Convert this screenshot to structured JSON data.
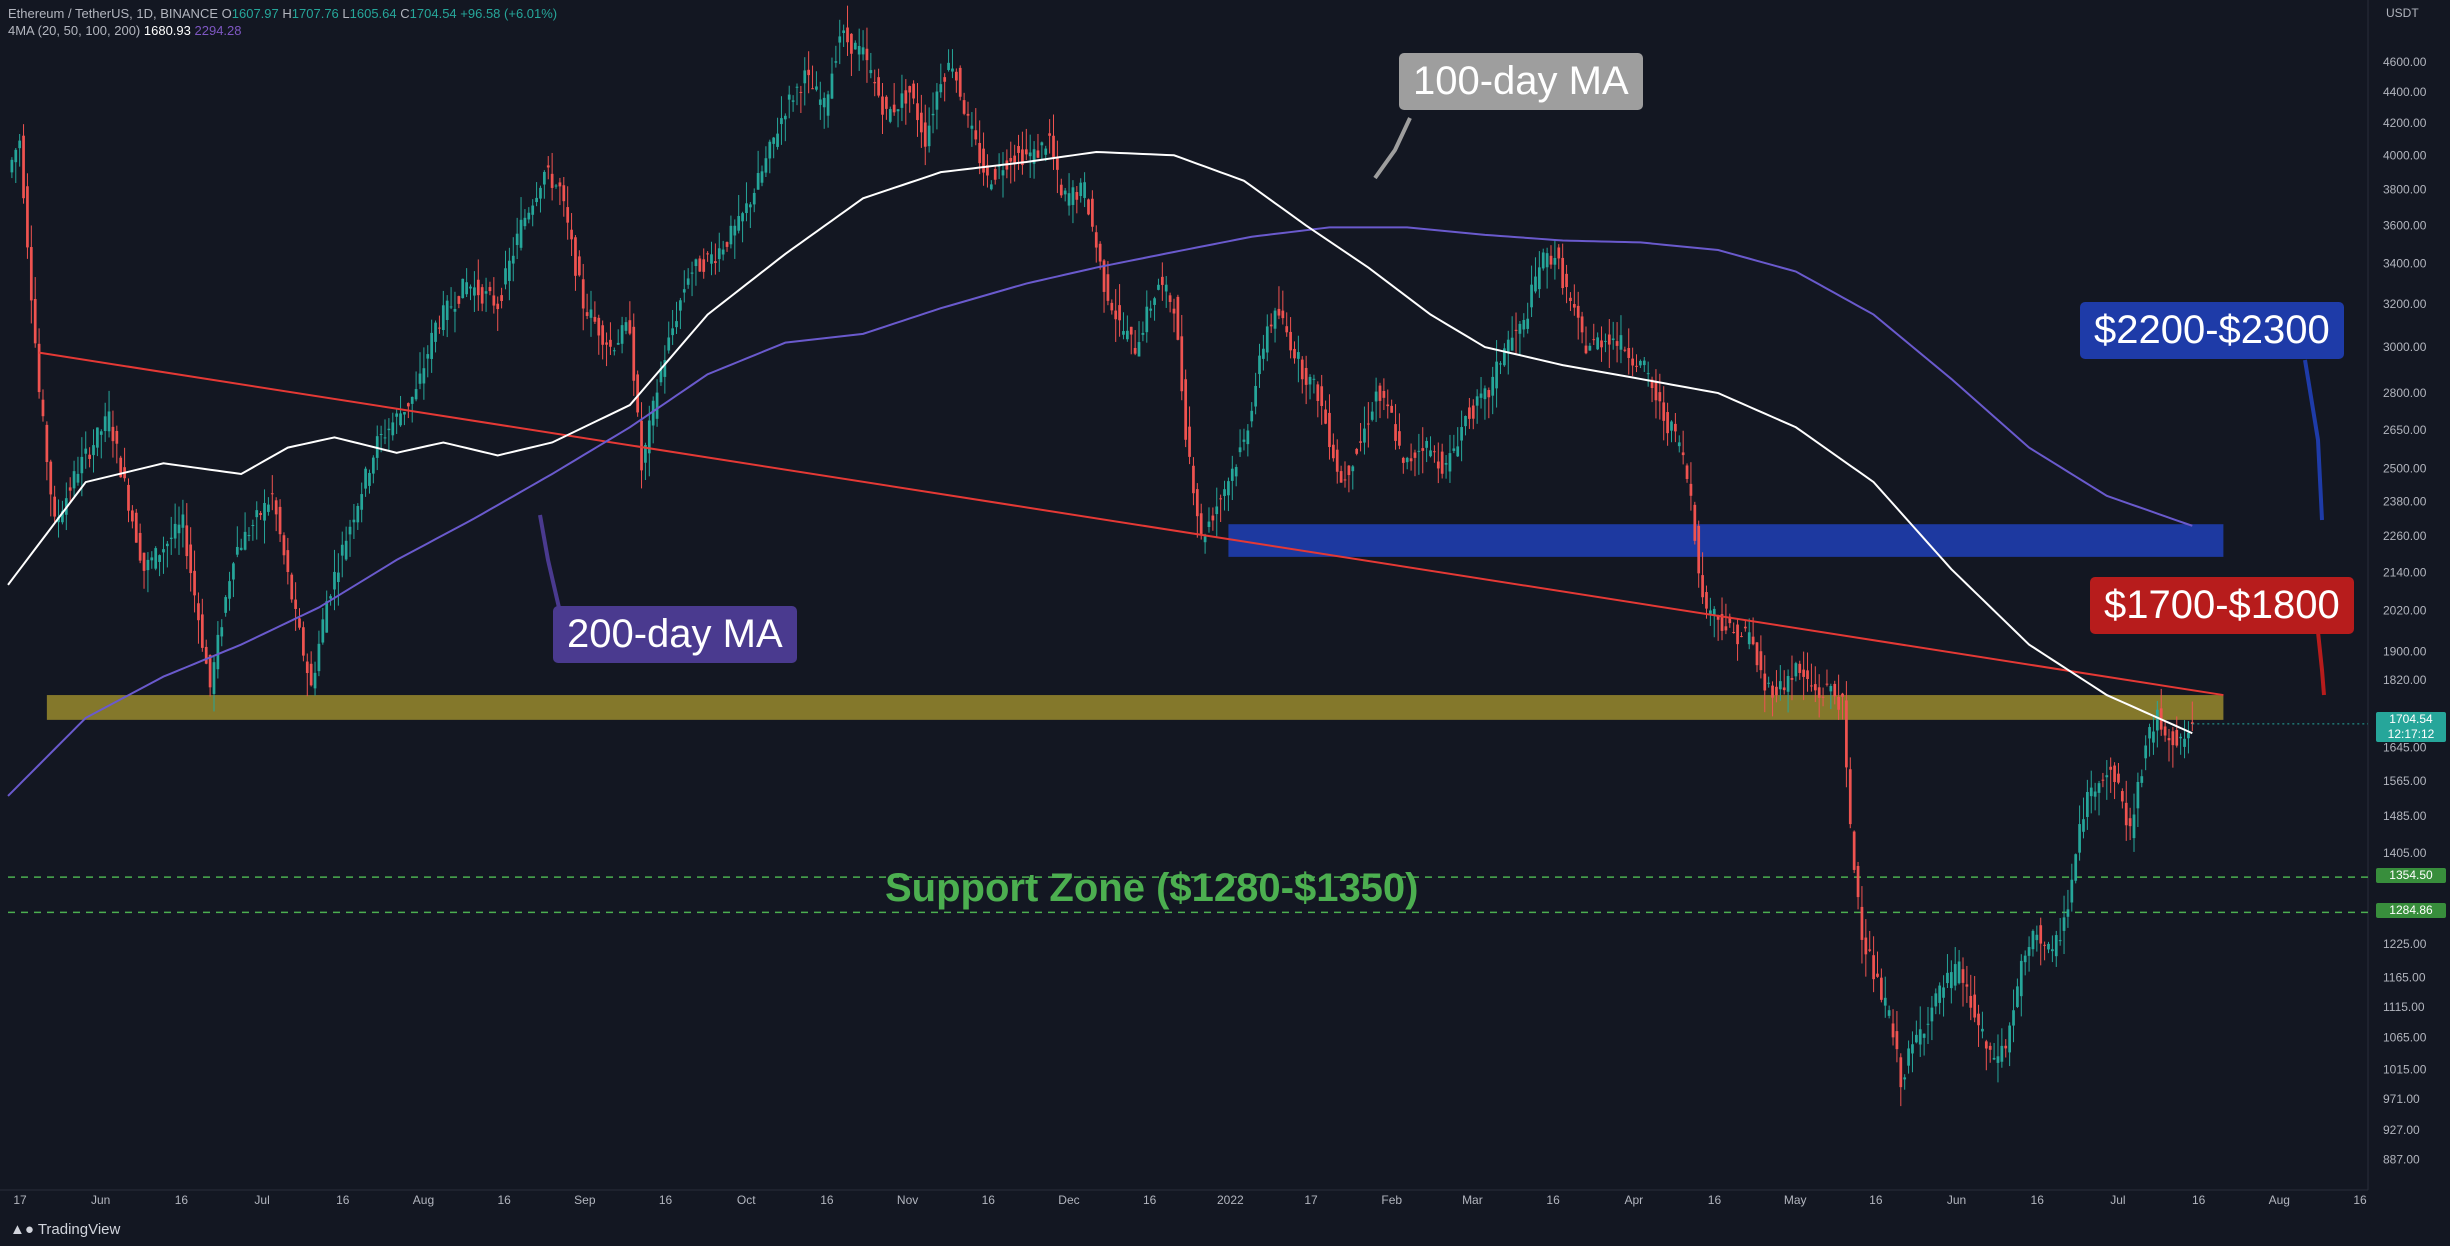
{
  "header": {
    "symbol_line": "Ethereum / TetherUS, 1D, BINANCE",
    "open_label": "O",
    "open": "1607.97",
    "high_label": "H",
    "high": "1707.76",
    "low_label": "L",
    "low": "1605.64",
    "close_label": "C",
    "close": "1704.54",
    "change": "+96.58 (+6.01%)",
    "indicator_label": "4MA (20, 50, 100, 200)",
    "ma_value_1": "1680.93",
    "ma_value_2": "2294.28"
  },
  "currency": "USDT",
  "footer": "TradingView",
  "annotations": {
    "ma100": "100-day MA",
    "ma200": "200-day MA",
    "zone_blue": "$2200-$2300",
    "zone_red": "$1700-$1800",
    "support": "Support Zone ($1280-$1350)"
  },
  "price_tags": {
    "last_price": "1704.54",
    "countdown": "12:17:12",
    "level_1": "1354.50",
    "level_2": "1284.86"
  },
  "colors": {
    "background": "#131722",
    "up": "#26a69a",
    "down": "#ef5350",
    "ma100": "#ffffff",
    "ma200": "#6a5acd",
    "trendline": "#e53935",
    "blue_zone": "#1e3ba8",
    "yellow_zone": "#8a7d2c",
    "support_lines": "#4caf50"
  },
  "chart_data": {
    "type": "candlestick",
    "y_scale": "log",
    "ylim": [
      860,
      4900
    ],
    "y_ticks": [
      887,
      927,
      971,
      1015,
      1065,
      1115,
      1165,
      1225,
      1285,
      1405,
      1485,
      1565,
      1645,
      1820,
      1900,
      2020,
      2140,
      2260,
      2380,
      2500,
      2650,
      2800,
      3000,
      3200,
      3400,
      3600,
      3800,
      4000,
      4200,
      4400,
      4600
    ],
    "x_ticks": [
      "17",
      "Jun",
      "16",
      "Jul",
      "16",
      "Aug",
      "16",
      "Sep",
      "16",
      "Oct",
      "16",
      "Nov",
      "16",
      "Dec",
      "16",
      "2022",
      "17",
      "Feb",
      "Mar",
      "16",
      "Apr",
      "16",
      "May",
      "16",
      "Jun",
      "16",
      "Jul",
      "16",
      "Aug",
      "16"
    ],
    "price_path": [
      [
        0,
        3900
      ],
      [
        3,
        4100
      ],
      [
        8,
        2800
      ],
      [
        12,
        2300
      ],
      [
        18,
        2500
      ],
      [
        26,
        2700
      ],
      [
        35,
        2150
      ],
      [
        45,
        2300
      ],
      [
        52,
        1800
      ],
      [
        58,
        2200
      ],
      [
        68,
        2400
      ],
      [
        74,
        2000
      ],
      [
        78,
        1800
      ],
      [
        82,
        2050
      ],
      [
        88,
        2300
      ],
      [
        95,
        2600
      ],
      [
        100,
        2700
      ],
      [
        105,
        2800
      ],
      [
        110,
        3100
      ],
      [
        118,
        3300
      ],
      [
        126,
        3200
      ],
      [
        132,
        3600
      ],
      [
        138,
        3900
      ],
      [
        142,
        3800
      ],
      [
        148,
        3200
      ],
      [
        155,
        3000
      ],
      [
        160,
        3100
      ],
      [
        163,
        2500
      ],
      [
        168,
        2900
      ],
      [
        175,
        3350
      ],
      [
        182,
        3450
      ],
      [
        188,
        3600
      ],
      [
        194,
        3900
      ],
      [
        200,
        4300
      ],
      [
        205,
        4500
      ],
      [
        210,
        4300
      ],
      [
        214,
        4800
      ],
      [
        220,
        4650
      ],
      [
        226,
        4250
      ],
      [
        232,
        4400
      ],
      [
        236,
        4100
      ],
      [
        240,
        4500
      ],
      [
        243,
        4600
      ],
      [
        247,
        4200
      ],
      [
        252,
        3850
      ],
      [
        258,
        4000
      ],
      [
        264,
        4000
      ],
      [
        268,
        4100
      ],
      [
        271,
        3750
      ],
      [
        277,
        3800
      ],
      [
        282,
        3300
      ],
      [
        286,
        3100
      ],
      [
        290,
        3000
      ],
      [
        296,
        3300
      ],
      [
        300,
        3200
      ],
      [
        303,
        2650
      ],
      [
        307,
        2250
      ],
      [
        312,
        2400
      ],
      [
        318,
        2600
      ],
      [
        324,
        3100
      ],
      [
        327,
        3150
      ],
      [
        333,
        2900
      ],
      [
        337,
        2800
      ],
      [
        343,
        2450
      ],
      [
        348,
        2600
      ],
      [
        352,
        2800
      ],
      [
        356,
        2700
      ],
      [
        359,
        2500
      ],
      [
        364,
        2600
      ],
      [
        370,
        2500
      ],
      [
        375,
        2700
      ],
      [
        381,
        2800
      ],
      [
        385,
        3000
      ],
      [
        390,
        3100
      ],
      [
        394,
        3400
      ],
      [
        398,
        3450
      ],
      [
        402,
        3200
      ],
      [
        406,
        3000
      ],
      [
        412,
        3050
      ],
      [
        416,
        3000
      ],
      [
        421,
        2900
      ],
      [
        426,
        2700
      ],
      [
        430,
        2600
      ],
      [
        433,
        2400
      ],
      [
        436,
        2050
      ],
      [
        440,
        2000
      ],
      [
        444,
        1950
      ],
      [
        448,
        1950
      ],
      [
        452,
        1800
      ],
      [
        456,
        1800
      ],
      [
        460,
        1850
      ],
      [
        466,
        1780
      ],
      [
        469,
        1800
      ],
      [
        472,
        1750
      ],
      [
        474,
        1450
      ],
      [
        477,
        1250
      ],
      [
        481,
        1150
      ],
      [
        484,
        1100
      ],
      [
        487,
        1000
      ],
      [
        490,
        1050
      ],
      [
        494,
        1100
      ],
      [
        498,
        1150
      ],
      [
        502,
        1180
      ],
      [
        506,
        1100
      ],
      [
        510,
        1030
      ],
      [
        514,
        1050
      ],
      [
        518,
        1180
      ],
      [
        522,
        1250
      ],
      [
        526,
        1200
      ],
      [
        530,
        1300
      ],
      [
        534,
        1500
      ],
      [
        538,
        1580
      ],
      [
        542,
        1580
      ],
      [
        546,
        1450
      ],
      [
        550,
        1650
      ],
      [
        553,
        1720
      ],
      [
        556,
        1680
      ],
      [
        559,
        1650
      ],
      [
        562,
        1704.54
      ]
    ],
    "ma100": [
      [
        0,
        2100
      ],
      [
        20,
        2450
      ],
      [
        40,
        2520
      ],
      [
        60,
        2480
      ],
      [
        72,
        2580
      ],
      [
        84,
        2620
      ],
      [
        100,
        2560
      ],
      [
        112,
        2600
      ],
      [
        126,
        2550
      ],
      [
        140,
        2600
      ],
      [
        160,
        2750
      ],
      [
        180,
        3150
      ],
      [
        200,
        3450
      ],
      [
        220,
        3750
      ],
      [
        240,
        3900
      ],
      [
        262,
        3960
      ],
      [
        280,
        4020
      ],
      [
        300,
        4000
      ],
      [
        318,
        3850
      ],
      [
        334,
        3600
      ],
      [
        350,
        3380
      ],
      [
        366,
        3150
      ],
      [
        380,
        3000
      ],
      [
        400,
        2920
      ],
      [
        420,
        2860
      ],
      [
        440,
        2800
      ],
      [
        460,
        2660
      ],
      [
        480,
        2450
      ],
      [
        500,
        2150
      ],
      [
        520,
        1920
      ],
      [
        540,
        1780
      ],
      [
        562,
        1680.93
      ]
    ],
    "ma200": [
      [
        0,
        1530
      ],
      [
        20,
        1720
      ],
      [
        40,
        1830
      ],
      [
        60,
        1920
      ],
      [
        80,
        2030
      ],
      [
        100,
        2180
      ],
      [
        120,
        2320
      ],
      [
        140,
        2480
      ],
      [
        160,
        2660
      ],
      [
        180,
        2880
      ],
      [
        200,
        3020
      ],
      [
        220,
        3060
      ],
      [
        240,
        3180
      ],
      [
        262,
        3300
      ],
      [
        280,
        3380
      ],
      [
        300,
        3460
      ],
      [
        320,
        3540
      ],
      [
        340,
        3590
      ],
      [
        360,
        3590
      ],
      [
        380,
        3550
      ],
      [
        400,
        3520
      ],
      [
        420,
        3510
      ],
      [
        440,
        3470
      ],
      [
        460,
        3360
      ],
      [
        480,
        3150
      ],
      [
        500,
        2860
      ],
      [
        520,
        2580
      ],
      [
        540,
        2400
      ],
      [
        562,
        2294.28
      ]
    ],
    "trendline": [
      [
        8,
        2975
      ],
      [
        570,
        1780
      ]
    ],
    "zones": [
      {
        "name": "blue",
        "from_day": 314,
        "to_day": 570,
        "low": 2190,
        "high": 2300
      },
      {
        "name": "yellow",
        "from_day": 10,
        "to_day": 570,
        "low": 1715,
        "high": 1780
      }
    ],
    "support_levels": [
      1354.5,
      1284.86
    ],
    "last_price": 1704.54
  }
}
